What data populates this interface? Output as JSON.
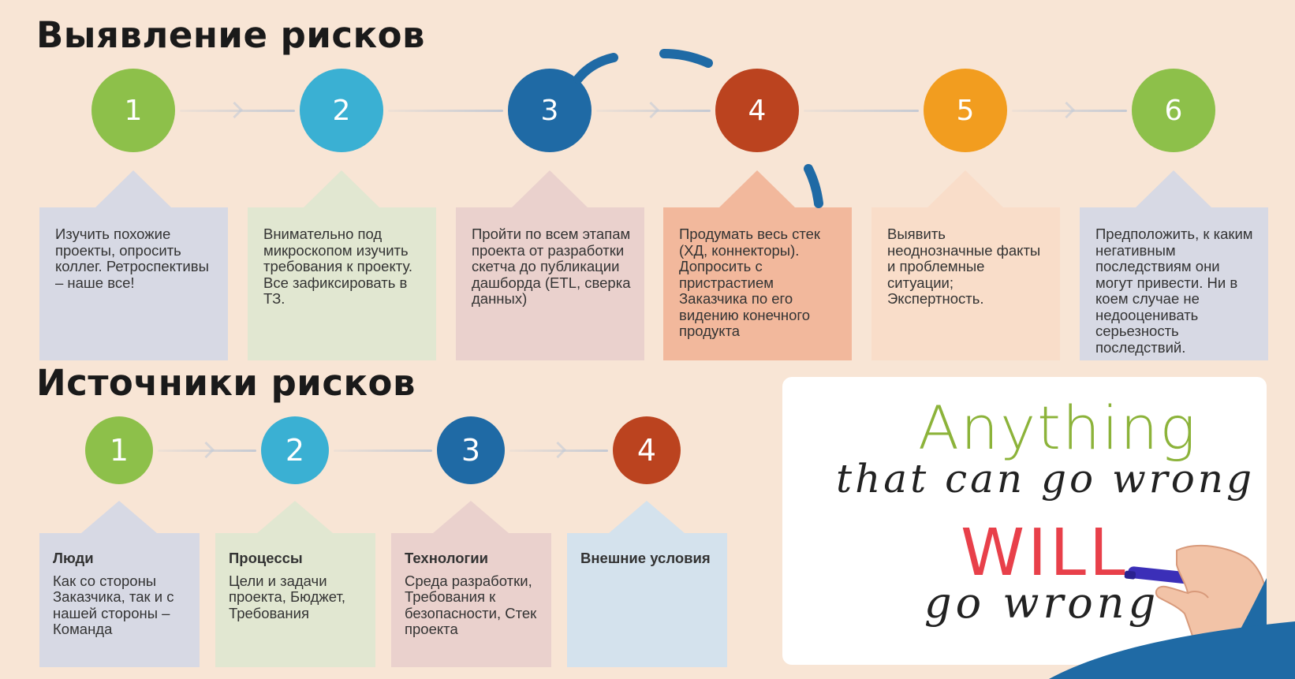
{
  "identification": {
    "title": "Выявление рисков",
    "steps": [
      {
        "num": "1",
        "color": "#8dc04a",
        "card_bg": "#d7d9e4",
        "text": "Изучить похожие проекты, опросить коллег. Ретроспективы – наше все!"
      },
      {
        "num": "2",
        "color": "#3ab0d3",
        "card_bg": "#e1e7d1",
        "text": "Внимательно под микроскопом изучить требования к проекту. Все зафиксировать в ТЗ."
      },
      {
        "num": "3",
        "color": "#1f6aa5",
        "card_bg": "#ead1cd",
        "text": "Пройти по всем этапам проекта от разработки скетча до публикации дашборда (ETL, сверка данных)"
      },
      {
        "num": "4",
        "color": "#bb431f",
        "card_bg": "#f2b89c",
        "text": "Продумать весь стек (ХД, коннекторы). Допросить с пристрастием Заказчика по его видению конечного продукта"
      },
      {
        "num": "5",
        "color": "#f29d1f",
        "card_bg": "#f9ddc9",
        "text": "Выявить неоднозначные факты и проблемные ситуации; Экспертность."
      },
      {
        "num": "6",
        "color": "#8dc04a",
        "card_bg": "#d7d9e4",
        "text": "Предположить, к каким негативным последствиям они могут привести. Ни в коем случае не недооценивать серьезность последствий."
      }
    ]
  },
  "sources": {
    "title": "Источники рисков",
    "steps": [
      {
        "num": "1",
        "color": "#8dc04a",
        "card_bg": "#d7d9e4",
        "head": "Люди",
        "text": "Как со стороны Заказчика, так и с нашей стороны – Команда"
      },
      {
        "num": "2",
        "color": "#3ab0d3",
        "card_bg": "#e1e7d1",
        "head": "Процессы",
        "text": "Цели и задачи проекта, Бюджет, Требования"
      },
      {
        "num": "3",
        "color": "#1f6aa5",
        "card_bg": "#ead1cd",
        "head": "Технологии",
        "text": "Среда разработки, Требования к безопасности, Стек проекта"
      },
      {
        "num": "4",
        "color": "#bb431f",
        "card_bg": "#d4e2ed",
        "head": "Внешние условия",
        "text": ""
      }
    ]
  },
  "quote": {
    "line1": "Anything",
    "line2": "that can go wrong",
    "line3": "WILL",
    "line4": "go wrong"
  },
  "icons": {
    "hand": "hand-with-marker-icon",
    "swoosh": "blue-swoosh-decoration",
    "corner": "blue-corner-decoration"
  }
}
